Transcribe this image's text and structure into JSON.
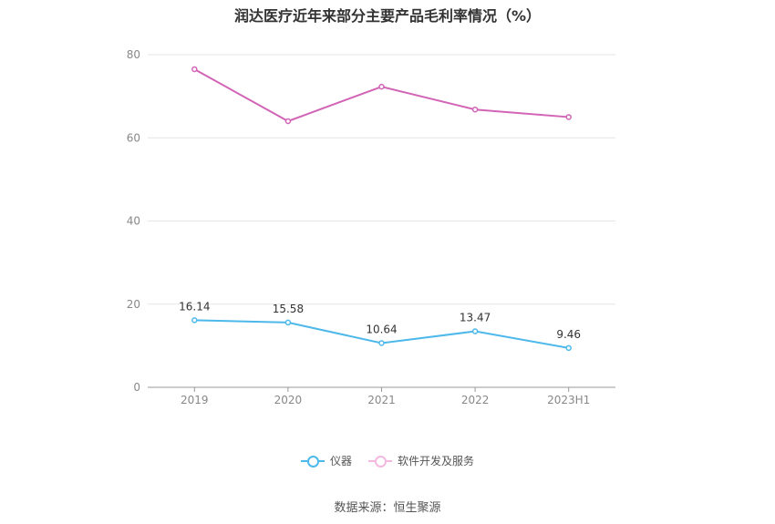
{
  "title": "润达医疗近年来部分主要产品毛利率情况（%）",
  "source": "数据来源：恒生聚源",
  "chart_data": {
    "type": "line",
    "categories": [
      "2019",
      "2020",
      "2021",
      "2022",
      "2023H1"
    ],
    "ylim": [
      0,
      80
    ],
    "yticks": [
      0,
      20,
      40,
      60,
      80
    ],
    "grid": true,
    "legend_position": "bottom",
    "series": [
      {
        "name": "仪器",
        "color": "#4db8ea",
        "values": [
          16.14,
          15.58,
          10.64,
          13.47,
          9.46
        ],
        "labels": [
          "16.14",
          "15.58",
          "10.64",
          "13.47",
          "9.46"
        ],
        "show_labels": true
      },
      {
        "name": "软件开发及服务",
        "color": "#d264b6",
        "values": [
          76.5,
          64.0,
          72.3,
          66.8,
          65.0
        ],
        "show_labels": false
      }
    ]
  }
}
